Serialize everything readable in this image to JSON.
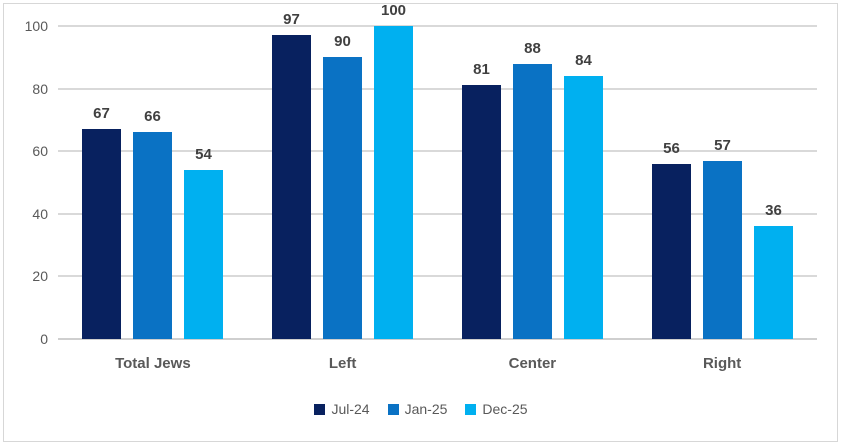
{
  "chart_data": {
    "type": "bar",
    "title": "",
    "xlabel": "",
    "ylabel": "",
    "categories": [
      "Total Jews",
      "Left",
      "Center",
      "Right"
    ],
    "series": [
      {
        "name": "Jul-24",
        "color": "#08215F",
        "values": [
          67,
          97,
          81,
          56
        ]
      },
      {
        "name": "Jan-25",
        "color": "#0A72C4",
        "values": [
          66,
          90,
          88,
          57
        ]
      },
      {
        "name": "Dec-25",
        "color": "#00B0F0",
        "values": [
          54,
          100,
          84,
          36
        ]
      }
    ],
    "ylim": [
      0,
      100
    ],
    "yticks": [
      0,
      20,
      40,
      60,
      80,
      100
    ],
    "grid": true,
    "legend_position": "bottom"
  },
  "style_colors": {
    "gridline": "#D9D9D9",
    "axis_line": "#CFCFCF",
    "tick_label": "#595959",
    "data_label": "#404040",
    "category_label": "#595959",
    "legend_label": "#595959",
    "chart_border": "#D7D7D7",
    "background": "#FFFFFF"
  }
}
